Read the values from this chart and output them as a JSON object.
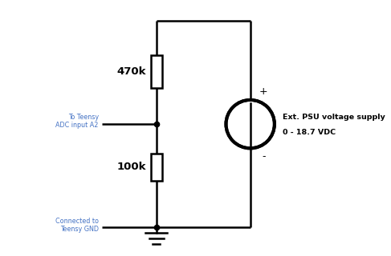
{
  "background_color": "#ffffff",
  "line_color": "#000000",
  "label_color": "#4472c4",
  "fig_width": 4.87,
  "fig_height": 3.2,
  "dpi": 100,
  "resistor_470k_label": "470k",
  "resistor_100k_label": "100k",
  "psu_label_line1": "Ext. PSU voltage supply",
  "psu_label_line2": "0 - 18.7 VDC",
  "teensy_adc_label": "To Teensy\nADC input A2",
  "gnd_label": "Connected to\nTeensy GND",
  "plus_label": "+",
  "minus_label": "-"
}
